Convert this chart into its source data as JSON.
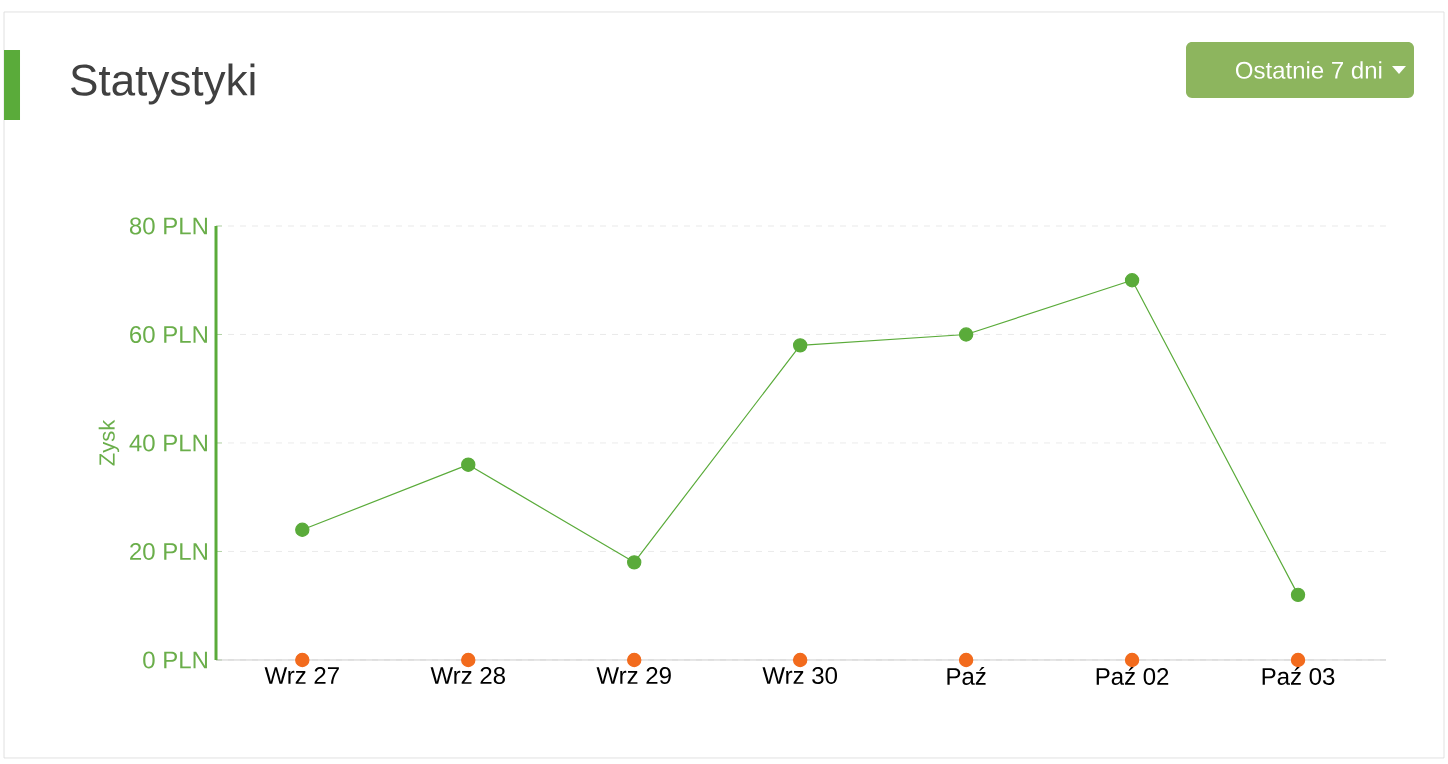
{
  "chart_data": {
    "type": "line",
    "title": "Statystyki",
    "ylabel": "Zysk",
    "annotations": [
      "Ostatnie 7 dni"
    ],
    "categories": [
      "Wrz 27",
      "Wrz 28",
      "Wrz 29",
      "Wrz 30",
      "Paź",
      "Paź 02",
      "Paź 03"
    ],
    "series": [
      {
        "color": "#5aab3a",
        "values": [
          24,
          36,
          18,
          58,
          60,
          70,
          12
        ]
      },
      {
        "type": "scatter",
        "color": "#f26b1d",
        "values": [
          0,
          0,
          0,
          0,
          0,
          0,
          0
        ]
      }
    ],
    "ylim": [
      0,
      80
    ],
    "yticks": [
      {
        "value": 0,
        "label": "0 PLN"
      },
      {
        "value": 20,
        "label": "20 PLN"
      },
      {
        "value": 40,
        "label": "40 PLN"
      },
      {
        "value": 60,
        "label": "60 PLN"
      },
      {
        "value": 80,
        "label": "80 PLN"
      }
    ],
    "grid": "y",
    "marker": "circle"
  }
}
